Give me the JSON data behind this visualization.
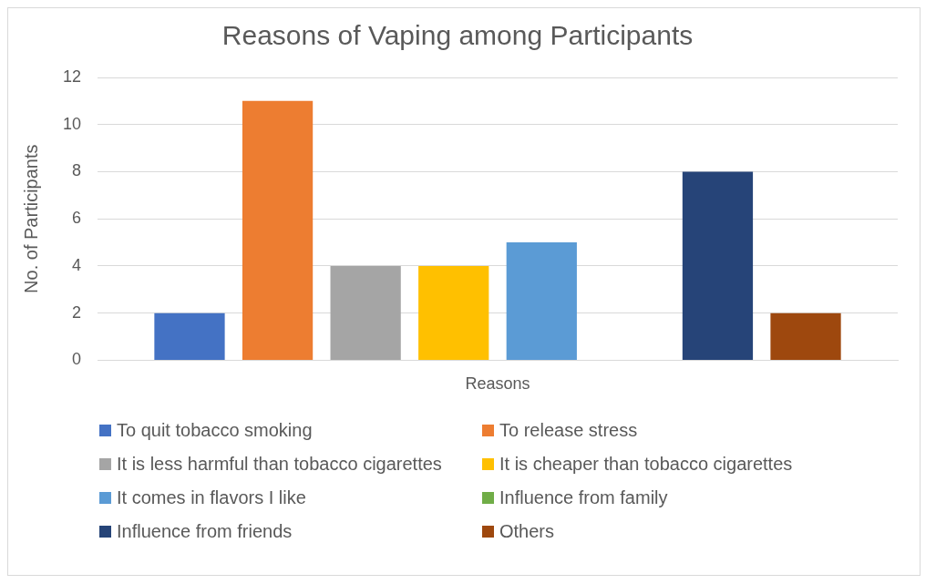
{
  "chart_data": {
    "type": "bar",
    "title": "Reasons of Vaping among Participants",
    "ylabel": "No. of Participants",
    "categories": [
      "Reasons"
    ],
    "series": [
      {
        "name": "To quit tobacco smoking",
        "color": "#4472c4",
        "values": [
          2
        ]
      },
      {
        "name": "To release stress",
        "color": "#ed7d31",
        "values": [
          11
        ]
      },
      {
        "name": "It is less harmful than tobacco cigarettes",
        "color": "#a5a5a5",
        "values": [
          4
        ]
      },
      {
        "name": "It is cheaper than tobacco cigarettes",
        "color": "#ffc000",
        "values": [
          4
        ]
      },
      {
        "name": "It comes in flavors I like",
        "color": "#5b9bd5",
        "values": [
          5
        ]
      },
      {
        "name": "Influence from family",
        "color": "#70ad47",
        "values": [
          0
        ]
      },
      {
        "name": "Influence from friends",
        "color": "#264478",
        "values": [
          8
        ]
      },
      {
        "name": "Others",
        "color": "#9e480e",
        "values": [
          2
        ]
      }
    ],
    "ylim": [
      0,
      12
    ],
    "yticks": [
      0,
      2,
      4,
      6,
      8,
      10,
      12
    ],
    "grid": "y",
    "legend": "bottom"
  }
}
